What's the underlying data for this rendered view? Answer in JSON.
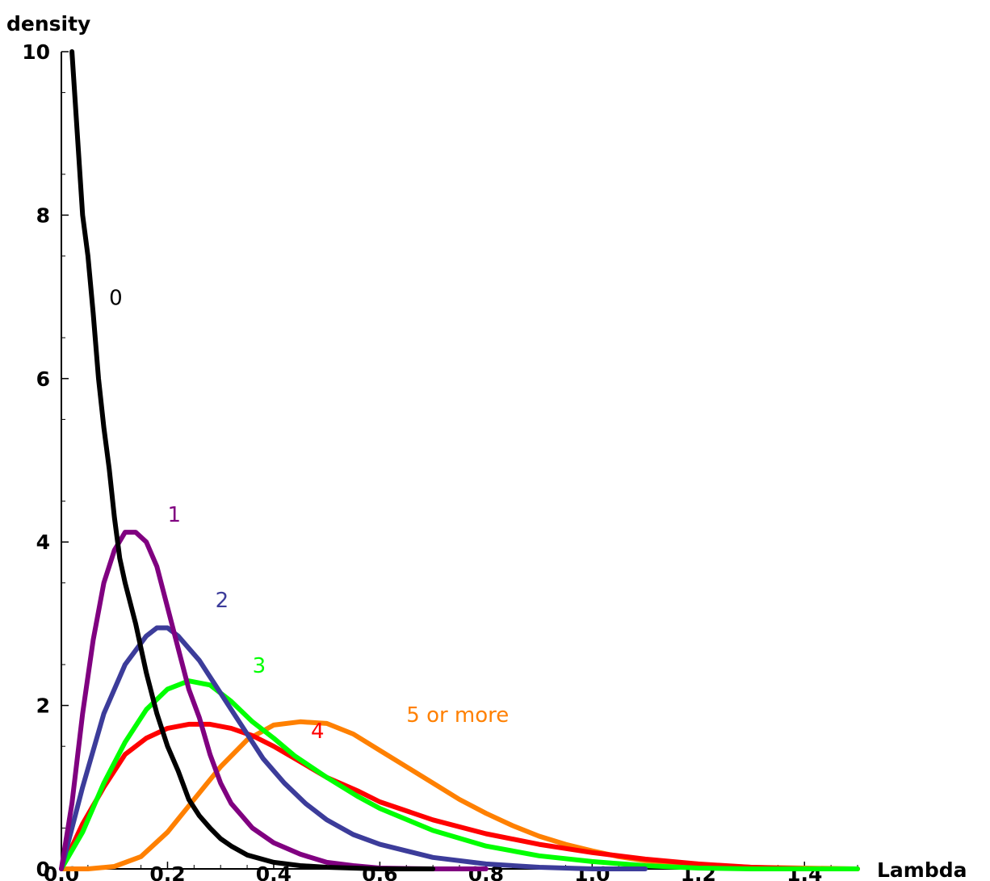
{
  "chart_data": {
    "type": "line",
    "title": "",
    "xlabel": "Lambda",
    "ylabel": "density",
    "xlim": [
      0.0,
      1.5
    ],
    "ylim": [
      0,
      10
    ],
    "x_ticks": [
      "0.0",
      "0.2",
      "0.4",
      "0.6",
      "0.8",
      "1.0",
      "1.2",
      "1.4"
    ],
    "y_ticks": [
      "0",
      "2",
      "4",
      "6",
      "8",
      "10"
    ],
    "grid": false,
    "legend": "none",
    "series": [
      {
        "name": "0",
        "color": "#000000",
        "points": [
          [
            0.02,
            10.0
          ],
          [
            0.03,
            9.0
          ],
          [
            0.04,
            8.0
          ],
          [
            0.05,
            7.5
          ],
          [
            0.06,
            6.8
          ],
          [
            0.07,
            6.0
          ],
          [
            0.08,
            5.4
          ],
          [
            0.09,
            4.9
          ],
          [
            0.1,
            4.3
          ],
          [
            0.11,
            3.8
          ],
          [
            0.12,
            3.5
          ],
          [
            0.14,
            3.0
          ],
          [
            0.16,
            2.4
          ],
          [
            0.18,
            1.9
          ],
          [
            0.2,
            1.5
          ],
          [
            0.22,
            1.2
          ],
          [
            0.24,
            0.85
          ],
          [
            0.26,
            0.65
          ],
          [
            0.28,
            0.5
          ],
          [
            0.3,
            0.37
          ],
          [
            0.32,
            0.28
          ],
          [
            0.35,
            0.17
          ],
          [
            0.4,
            0.08
          ],
          [
            0.45,
            0.04
          ],
          [
            0.5,
            0.02
          ],
          [
            0.6,
            0.0
          ],
          [
            0.7,
            0.0
          ]
        ]
      },
      {
        "name": "1",
        "color": "#800080",
        "points": [
          [
            0.0,
            0.0
          ],
          [
            0.02,
            0.8
          ],
          [
            0.04,
            1.9
          ],
          [
            0.06,
            2.8
          ],
          [
            0.08,
            3.5
          ],
          [
            0.1,
            3.9
          ],
          [
            0.12,
            4.12
          ],
          [
            0.14,
            4.12
          ],
          [
            0.16,
            4.0
          ],
          [
            0.18,
            3.7
          ],
          [
            0.2,
            3.2
          ],
          [
            0.22,
            2.7
          ],
          [
            0.24,
            2.2
          ],
          [
            0.26,
            1.85
          ],
          [
            0.28,
            1.4
          ],
          [
            0.3,
            1.05
          ],
          [
            0.32,
            0.8
          ],
          [
            0.34,
            0.65
          ],
          [
            0.36,
            0.5
          ],
          [
            0.4,
            0.32
          ],
          [
            0.45,
            0.18
          ],
          [
            0.5,
            0.08
          ],
          [
            0.55,
            0.04
          ],
          [
            0.6,
            0.01
          ],
          [
            0.7,
            0.0
          ],
          [
            0.8,
            0.0
          ]
        ]
      },
      {
        "name": "2",
        "color": "#3c3c9a",
        "points": [
          [
            0.0,
            0.0
          ],
          [
            0.04,
            1.0
          ],
          [
            0.08,
            1.9
          ],
          [
            0.12,
            2.5
          ],
          [
            0.16,
            2.85
          ],
          [
            0.18,
            2.95
          ],
          [
            0.2,
            2.95
          ],
          [
            0.22,
            2.85
          ],
          [
            0.26,
            2.55
          ],
          [
            0.3,
            2.15
          ],
          [
            0.34,
            1.75
          ],
          [
            0.38,
            1.35
          ],
          [
            0.42,
            1.05
          ],
          [
            0.46,
            0.8
          ],
          [
            0.5,
            0.6
          ],
          [
            0.55,
            0.42
          ],
          [
            0.6,
            0.3
          ],
          [
            0.7,
            0.14
          ],
          [
            0.8,
            0.06
          ],
          [
            0.9,
            0.02
          ],
          [
            1.0,
            0.0
          ],
          [
            1.1,
            0.0
          ]
        ]
      },
      {
        "name": "3",
        "color": "#00ff00",
        "points": [
          [
            0.0,
            0.0
          ],
          [
            0.04,
            0.45
          ],
          [
            0.08,
            1.05
          ],
          [
            0.12,
            1.55
          ],
          [
            0.16,
            1.95
          ],
          [
            0.2,
            2.2
          ],
          [
            0.24,
            2.3
          ],
          [
            0.28,
            2.25
          ],
          [
            0.32,
            2.05
          ],
          [
            0.36,
            1.8
          ],
          [
            0.4,
            1.6
          ],
          [
            0.44,
            1.38
          ],
          [
            0.5,
            1.12
          ],
          [
            0.56,
            0.88
          ],
          [
            0.6,
            0.74
          ],
          [
            0.7,
            0.47
          ],
          [
            0.8,
            0.28
          ],
          [
            0.9,
            0.16
          ],
          [
            1.0,
            0.09
          ],
          [
            1.1,
            0.04
          ],
          [
            1.2,
            0.01
          ],
          [
            1.3,
            0.0
          ],
          [
            1.5,
            0.0
          ]
        ]
      },
      {
        "name": "4",
        "color": "#ff0000",
        "points": [
          [
            0.0,
            0.0
          ],
          [
            0.04,
            0.55
          ],
          [
            0.08,
            1.0
          ],
          [
            0.12,
            1.4
          ],
          [
            0.16,
            1.6
          ],
          [
            0.2,
            1.72
          ],
          [
            0.24,
            1.77
          ],
          [
            0.28,
            1.77
          ],
          [
            0.32,
            1.72
          ],
          [
            0.36,
            1.63
          ],
          [
            0.4,
            1.5
          ],
          [
            0.44,
            1.35
          ],
          [
            0.5,
            1.12
          ],
          [
            0.56,
            0.95
          ],
          [
            0.6,
            0.82
          ],
          [
            0.7,
            0.6
          ],
          [
            0.8,
            0.43
          ],
          [
            0.9,
            0.3
          ],
          [
            1.0,
            0.2
          ],
          [
            1.1,
            0.12
          ],
          [
            1.2,
            0.06
          ],
          [
            1.3,
            0.02
          ],
          [
            1.4,
            0.0
          ],
          [
            1.5,
            0.0
          ]
        ]
      },
      {
        "name": "5 or more",
        "color": "#ff8000",
        "points": [
          [
            0.0,
            0.0
          ],
          [
            0.05,
            0.0
          ],
          [
            0.1,
            0.03
          ],
          [
            0.15,
            0.15
          ],
          [
            0.2,
            0.45
          ],
          [
            0.25,
            0.85
          ],
          [
            0.3,
            1.25
          ],
          [
            0.35,
            1.58
          ],
          [
            0.4,
            1.76
          ],
          [
            0.45,
            1.8
          ],
          [
            0.5,
            1.78
          ],
          [
            0.55,
            1.65
          ],
          [
            0.6,
            1.45
          ],
          [
            0.65,
            1.25
          ],
          [
            0.7,
            1.05
          ],
          [
            0.75,
            0.85
          ],
          [
            0.8,
            0.68
          ],
          [
            0.85,
            0.53
          ],
          [
            0.9,
            0.4
          ],
          [
            0.95,
            0.3
          ],
          [
            1.0,
            0.22
          ],
          [
            1.05,
            0.15
          ],
          [
            1.1,
            0.1
          ],
          [
            1.2,
            0.05
          ],
          [
            1.3,
            0.02
          ],
          [
            1.4,
            0.01
          ],
          [
            1.5,
            0.0
          ]
        ]
      }
    ]
  }
}
